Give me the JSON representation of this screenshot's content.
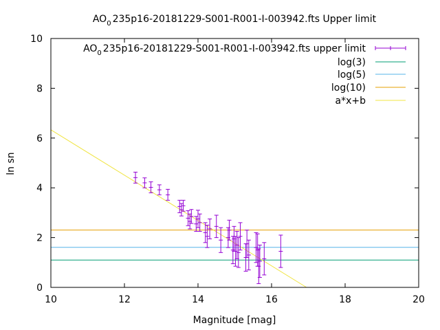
{
  "chart_data": {
    "type": "scatter",
    "title": "AO_0235p16-20181229-S001-R001-I-003942.fts Upper limit",
    "title_parts": {
      "prefix": "AO",
      "subscript": "0",
      "suffix": "235p16-20181229-S001-R001-I-003942.fts Upper limit"
    },
    "xlabel": "Magnitude [mag]",
    "ylabel": "ln sn",
    "xlim": [
      10,
      20
    ],
    "ylim": [
      0,
      10
    ],
    "xticks": [
      "10",
      "12",
      "14",
      "16",
      "18",
      "20"
    ],
    "yticks": [
      "0",
      "2",
      "4",
      "6",
      "8",
      "10"
    ],
    "grid": false,
    "legend_position": "top-right",
    "series": [
      {
        "name": "AO_0235p16-20181229-S001-R001-I-003942.fts upper limit",
        "name_parts": {
          "prefix": "AO",
          "subscript": "0",
          "suffix": "235p16-20181229-S001-R001-I-003942.fts upper limit"
        },
        "kind": "errorbars",
        "color": "#9400d3",
        "points": [
          {
            "x": 12.3,
            "y": 4.41,
            "err": 0.22
          },
          {
            "x": 12.55,
            "y": 4.2,
            "err": 0.2
          },
          {
            "x": 12.72,
            "y": 4.02,
            "err": 0.22
          },
          {
            "x": 12.95,
            "y": 3.92,
            "err": 0.2
          },
          {
            "x": 13.18,
            "y": 3.72,
            "err": 0.22
          },
          {
            "x": 13.5,
            "y": 3.25,
            "err": 0.25
          },
          {
            "x": 13.55,
            "y": 3.12,
            "err": 0.25
          },
          {
            "x": 13.6,
            "y": 3.28,
            "err": 0.22
          },
          {
            "x": 13.73,
            "y": 2.78,
            "err": 0.3
          },
          {
            "x": 13.78,
            "y": 2.65,
            "err": 0.3
          },
          {
            "x": 13.82,
            "y": 2.85,
            "err": 0.28
          },
          {
            "x": 13.95,
            "y": 2.55,
            "err": 0.3
          },
          {
            "x": 14.0,
            "y": 2.75,
            "err": 0.35
          },
          {
            "x": 14.05,
            "y": 2.6,
            "err": 0.35
          },
          {
            "x": 14.2,
            "y": 2.2,
            "err": 0.4
          },
          {
            "x": 14.25,
            "y": 2.05,
            "err": 0.45
          },
          {
            "x": 14.32,
            "y": 2.35,
            "err": 0.4
          },
          {
            "x": 14.5,
            "y": 2.45,
            "err": 0.45
          },
          {
            "x": 14.62,
            "y": 1.9,
            "err": 0.5
          },
          {
            "x": 14.82,
            "y": 2.0,
            "err": 0.4
          },
          {
            "x": 14.85,
            "y": 2.3,
            "err": 0.4
          },
          {
            "x": 14.95,
            "y": 1.5,
            "err": 0.55
          },
          {
            "x": 14.98,
            "y": 1.95,
            "err": 0.5
          },
          {
            "x": 15.02,
            "y": 1.45,
            "err": 0.6
          },
          {
            "x": 15.06,
            "y": 1.7,
            "err": 0.55
          },
          {
            "x": 15.1,
            "y": 1.4,
            "err": 0.6
          },
          {
            "x": 15.15,
            "y": 2.05,
            "err": 0.55
          },
          {
            "x": 15.3,
            "y": 1.2,
            "err": 0.55
          },
          {
            "x": 15.33,
            "y": 1.75,
            "err": 0.55
          },
          {
            "x": 15.38,
            "y": 1.3,
            "err": 0.6
          },
          {
            "x": 15.58,
            "y": 1.6,
            "err": 0.6
          },
          {
            "x": 15.62,
            "y": 1.5,
            "err": 0.65
          },
          {
            "x": 15.65,
            "y": 0.85,
            "err": 0.7
          },
          {
            "x": 15.68,
            "y": 1.05,
            "err": 0.65
          },
          {
            "x": 15.8,
            "y": 1.15,
            "err": 0.65
          },
          {
            "x": 16.25,
            "y": 1.45,
            "err": 0.65
          }
        ]
      },
      {
        "name": "log(3)",
        "kind": "hline",
        "color": "#009e73",
        "y": 1.0986
      },
      {
        "name": "log(5)",
        "kind": "hline",
        "color": "#56b4e9",
        "y": 1.6094
      },
      {
        "name": "log(10)",
        "kind": "hline",
        "color": "#e69f00",
        "y": 2.3026
      },
      {
        "name": "a*x+b",
        "kind": "fitline",
        "color": "#f0e442",
        "x": [
          10,
          16.95
        ],
        "y": [
          6.33,
          0.0
        ]
      }
    ]
  }
}
